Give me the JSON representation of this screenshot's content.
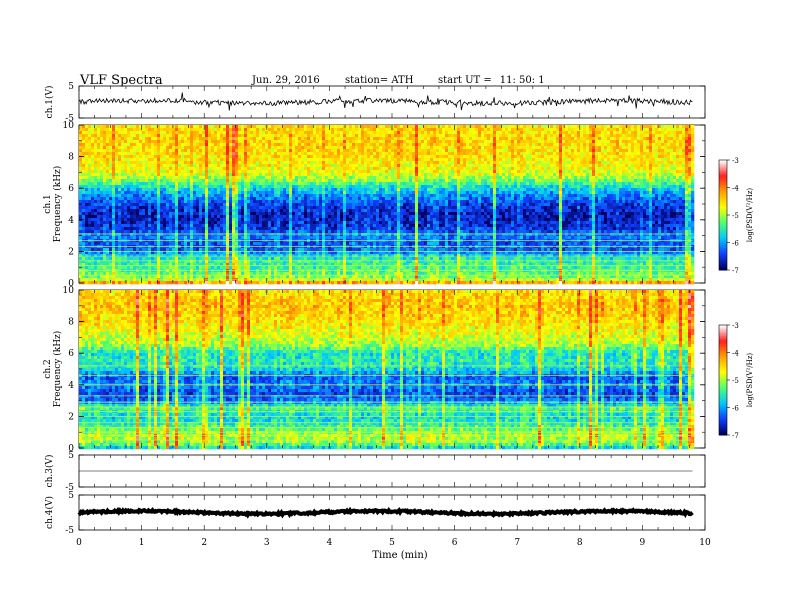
{
  "header": {
    "title": "VLF  Spectra",
    "date": "Jun. 29, 2016",
    "station": "station= ATH",
    "start_label": "start  UT  =",
    "start_value": "11: 50: 1"
  },
  "colorbar": {
    "label": "log(PSD(V²/Hz)",
    "ticks": [
      "-3",
      "-4",
      "-5",
      "-6",
      "-7"
    ],
    "colors": [
      "#ffffff",
      "#ff2020",
      "#ff9f00",
      "#ffff00",
      "#50ff70",
      "#00c8ff",
      "#1040ff",
      "#000060"
    ]
  },
  "chart_data": [
    {
      "type": "line",
      "panel": "ch1-waveform",
      "ylabel": "ch.1(V)",
      "yticks": [
        "5",
        "-5"
      ],
      "ylim": [
        -5,
        5
      ],
      "x_range": [
        0,
        9.8
      ],
      "baseline": 0,
      "noise_amplitude": 0.8,
      "spike_amplitude": 2.5,
      "color": "#000000"
    },
    {
      "type": "heatmap",
      "panel": "ch1-spectrogram",
      "ylabel_top": "ch.1",
      "ylabel": "Frequency  (kHz)",
      "yticks": [
        "10",
        "8",
        "6",
        "4",
        "2",
        "0"
      ],
      "ylim": [
        0,
        10
      ],
      "x_range": [
        0,
        9.8
      ],
      "colorbar_range": [
        -7,
        -3
      ],
      "profile_kHz": [
        0,
        0.2,
        0.5,
        1.0,
        1.5,
        2.0,
        2.5,
        3.0,
        3.5,
        4.0,
        4.5,
        5.0,
        5.5,
        6.0,
        6.5,
        7.0,
        8.0,
        9.0,
        10.0
      ],
      "profile_logPSD": [
        -4.2,
        -5.0,
        -5.3,
        -5.5,
        -5.6,
        -6.3,
        -6.4,
        -6.2,
        -6.6,
        -6.7,
        -6.7,
        -6.5,
        -6.2,
        -5.8,
        -5.2,
        -4.8,
        -4.6,
        -4.5,
        -4.6
      ],
      "lines_kHz": [
        0.2,
        0.5,
        0.8,
        1.1,
        1.4,
        1.7,
        2.0,
        2.3,
        2.7,
        3.1
      ]
    },
    {
      "type": "heatmap",
      "panel": "ch2-spectrogram",
      "ylabel_top": "ch.2",
      "ylabel": "Frequency  (kHz)",
      "yticks": [
        "10",
        "8",
        "6",
        "4",
        "2",
        "0"
      ],
      "ylim": [
        0,
        10
      ],
      "x_range": [
        0,
        9.8
      ],
      "colorbar_range": [
        -7,
        -3
      ],
      "profile_kHz": [
        0,
        0.3,
        0.8,
        1.5,
        2.0,
        2.5,
        3.0,
        3.5,
        4.0,
        4.5,
        5.0,
        5.5,
        6.0,
        6.5,
        7.0,
        8.0,
        9.0,
        10.0
      ],
      "profile_logPSD": [
        -5.8,
        -5.2,
        -5.0,
        -5.6,
        -5.8,
        -5.4,
        -6.3,
        -6.5,
        -6.2,
        -6.4,
        -5.8,
        -5.6,
        -5.7,
        -5.1,
        -4.9,
        -4.6,
        -4.4,
        -4.6
      ],
      "lines_kHz": [
        0.5,
        0.8,
        1.0,
        1.3,
        1.6,
        2.0,
        2.3,
        2.6,
        2.9,
        3.3,
        4.0,
        4.6,
        5.2
      ]
    },
    {
      "type": "line",
      "panel": "ch3-waveform",
      "ylabel": "ch.3(V)",
      "yticks": [
        "5",
        "-5"
      ],
      "ylim": [
        -5,
        5
      ],
      "x_range": [
        0,
        9.8
      ],
      "baseline": 0,
      "noise_amplitude": 0,
      "color": "#000000"
    },
    {
      "type": "line",
      "panel": "ch4-waveform",
      "ylabel": "ch.4(V)",
      "yticks": [
        "5",
        "-5"
      ],
      "ylim": [
        -5,
        5
      ],
      "x_range": [
        0,
        9.8
      ],
      "baseline": 0,
      "noise_amplitude": 0.3,
      "color": "#000000"
    }
  ],
  "xaxis": {
    "label": "Time  (min)",
    "ticks": [
      "0",
      "1",
      "2",
      "3",
      "4",
      "5",
      "6",
      "7",
      "8",
      "9",
      "10"
    ],
    "xlim": [
      0,
      10
    ]
  }
}
